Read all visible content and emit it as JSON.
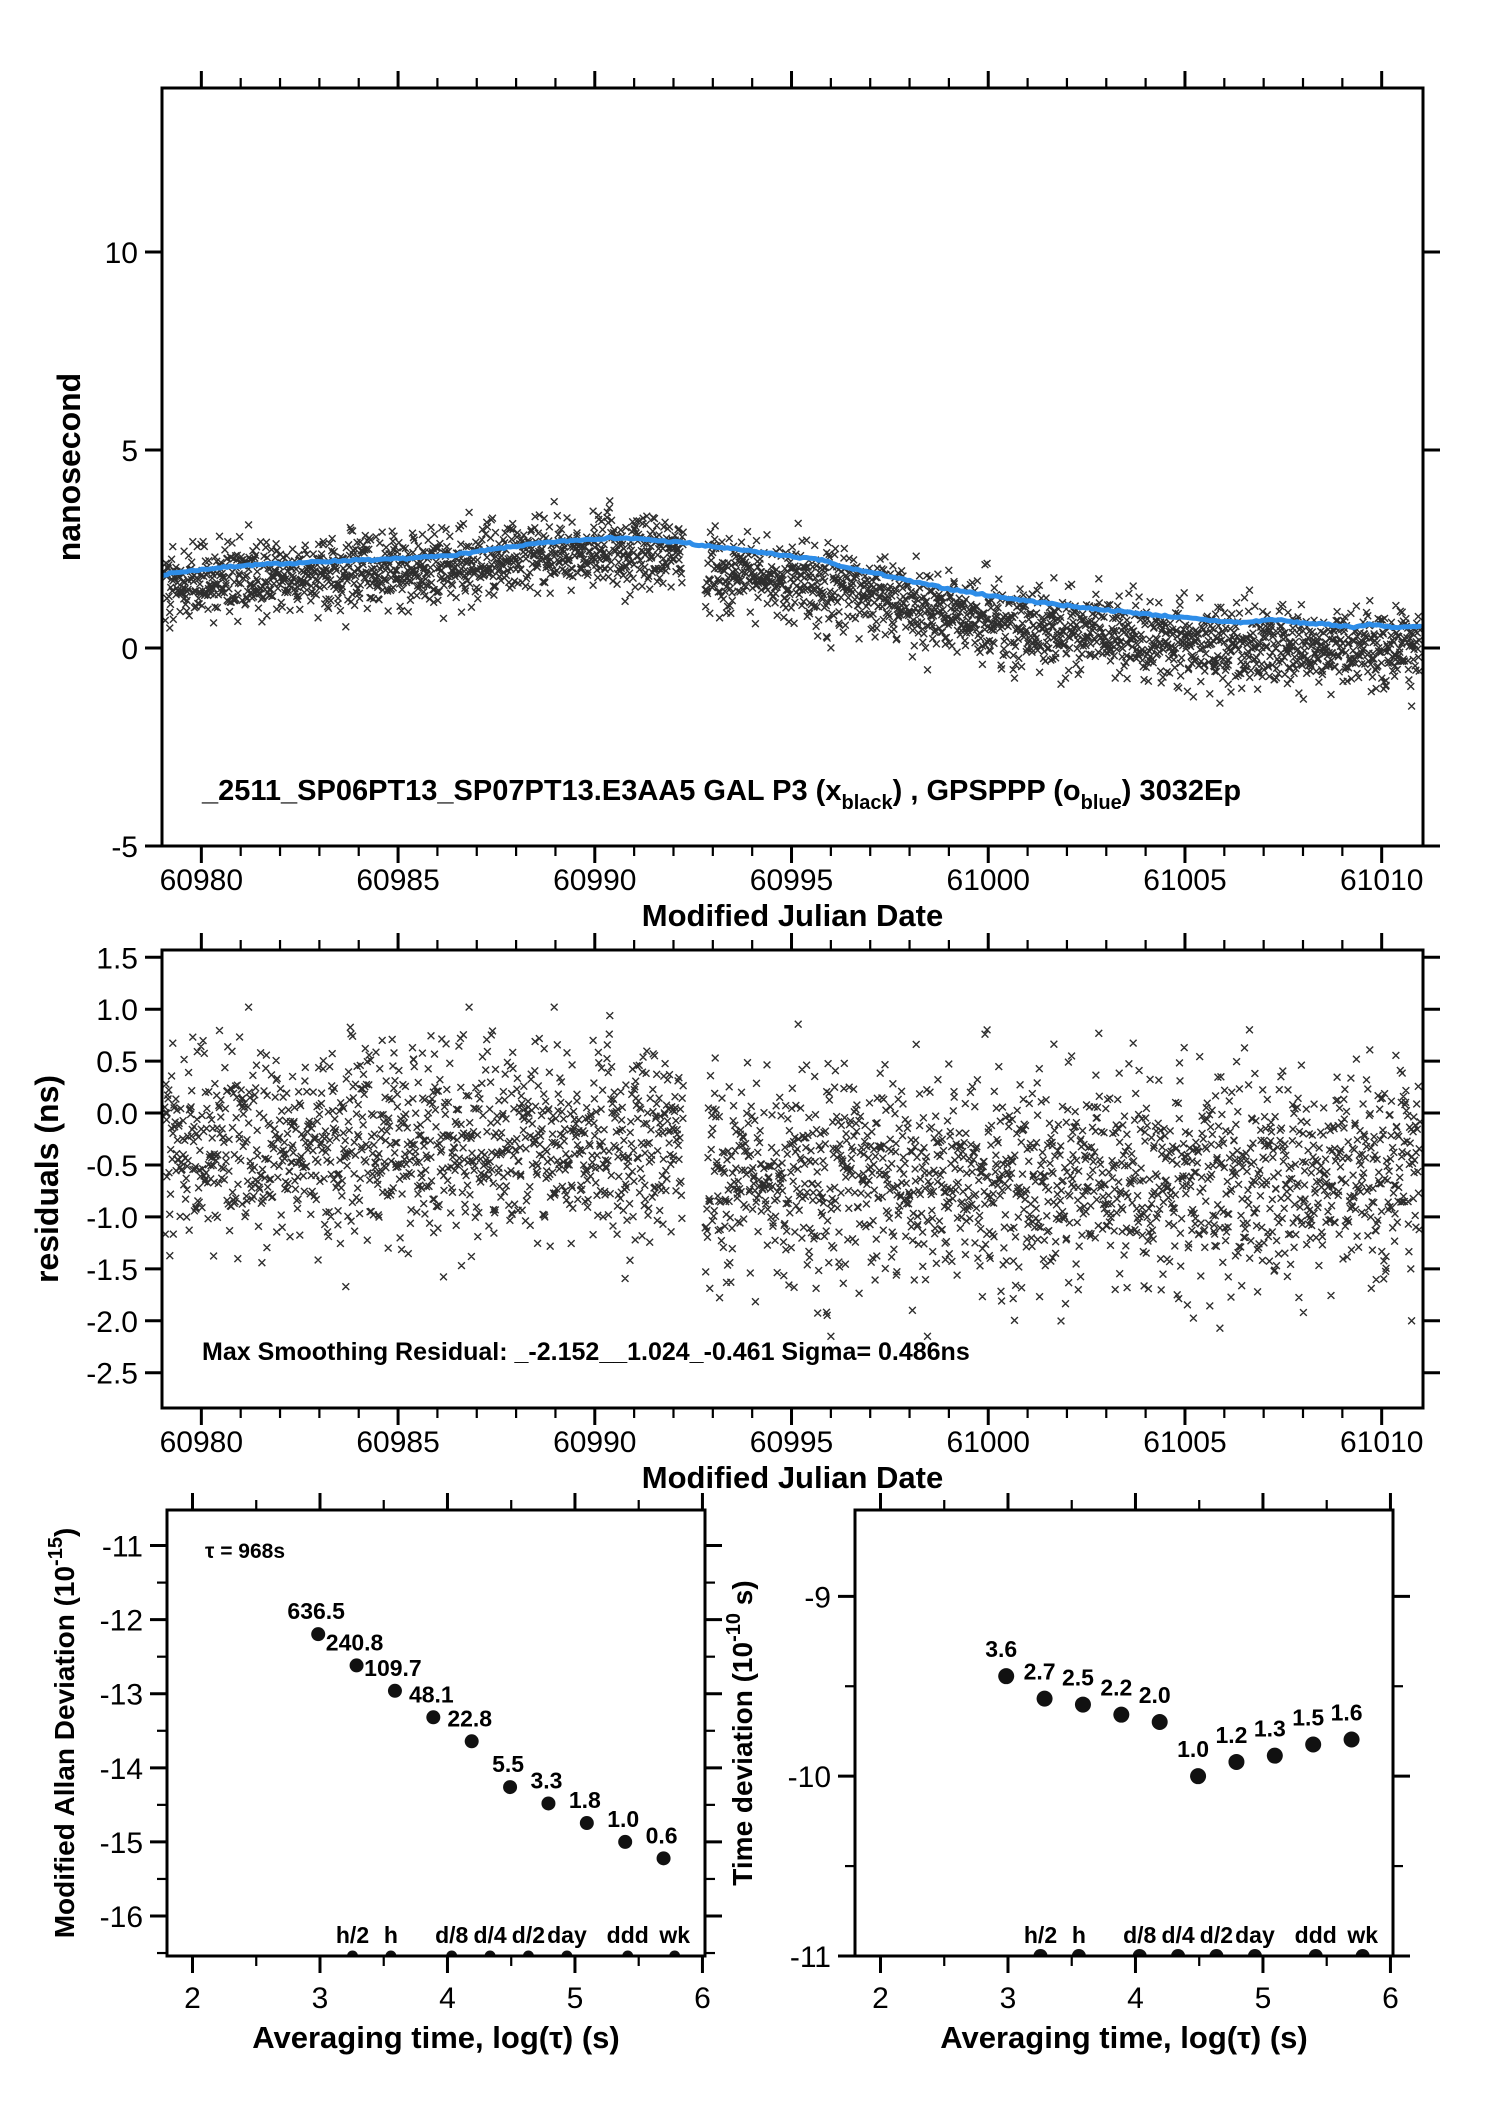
{
  "colors": {
    "background": "#ffffff",
    "scatter_black": "#111111",
    "curve_blue": "#2e8de8",
    "accent_red": "#ee0000",
    "axis": "#000000"
  },
  "chart_data": [
    {
      "id": "top",
      "type": "scatter",
      "xlabel": "Modified Julian Date",
      "ylabel": "nanosecond",
      "xlim": [
        60979,
        61011.05
      ],
      "ylim": [
        -5,
        14.14
      ],
      "xticks": [
        60980,
        60985,
        60990,
        60995,
        61000,
        61005,
        61010
      ],
      "xtick_labels": [
        "60980",
        "60985",
        "60990",
        "60995",
        "61000",
        "61005",
        "61010"
      ],
      "x_minor_step": 1,
      "yticks": [
        -5,
        0,
        5,
        10
      ],
      "ytick_labels": [
        "-5",
        "0",
        "5",
        "10"
      ],
      "annotation_parts": [
        {
          "t": "_2511_SP06PT13_SP07PT13.E3AA5    GAL P3 (x"
        },
        {
          "sub": "black"
        },
        {
          "t": ") ,  GPSPPP (o"
        },
        {
          "sub": "blue"
        },
        {
          "t": ")  3032Ep"
        }
      ],
      "series": [
        {
          "name": "GAL P3",
          "marker": "x",
          "color": "#111111",
          "definition": "smoothed_curve_plus_residuals"
        },
        {
          "name": "GPSPPP",
          "marker": "o",
          "color": "#2e8de8",
          "smoothed_curve_points": [
            [
              60979.0,
              1.85
            ],
            [
              60979.5,
              1.92
            ],
            [
              60980,
              1.98
            ],
            [
              60980.5,
              2.03
            ],
            [
              60981,
              2.08
            ],
            [
              60981.5,
              2.1
            ],
            [
              60982,
              2.13
            ],
            [
              60982.5,
              2.15
            ],
            [
              60983,
              2.18
            ],
            [
              60983.5,
              2.2
            ],
            [
              60984,
              2.22
            ],
            [
              60984.5,
              2.22
            ],
            [
              60985,
              2.25
            ],
            [
              60985.5,
              2.28
            ],
            [
              60986,
              2.31
            ],
            [
              60986.5,
              2.36
            ],
            [
              60987,
              2.43
            ],
            [
              60987.5,
              2.5
            ],
            [
              60988,
              2.57
            ],
            [
              60988.5,
              2.63
            ],
            [
              60989,
              2.68
            ],
            [
              60989.5,
              2.72
            ],
            [
              60990,
              2.76
            ],
            [
              60990.5,
              2.78
            ],
            [
              60991,
              2.76
            ],
            [
              60991.5,
              2.72
            ],
            [
              60992,
              2.68
            ],
            [
              60992.4,
              2.65
            ],
            [
              60992.6,
              2.59
            ],
            [
              60993,
              2.56
            ],
            [
              60993.5,
              2.5
            ],
            [
              60994,
              2.44
            ],
            [
              60994.5,
              2.38
            ],
            [
              60995,
              2.31
            ],
            [
              60995.5,
              2.25
            ],
            [
              60995.9,
              2.2
            ],
            [
              60996.2,
              2.06
            ],
            [
              60996.6,
              1.99
            ],
            [
              60997,
              1.91
            ],
            [
              60997.5,
              1.81
            ],
            [
              60998,
              1.69
            ],
            [
              60998.5,
              1.59
            ],
            [
              60999,
              1.49
            ],
            [
              60999.5,
              1.41
            ],
            [
              61000,
              1.33
            ],
            [
              61000.5,
              1.26
            ],
            [
              61001,
              1.19
            ],
            [
              61001.5,
              1.13
            ],
            [
              61002,
              1.07
            ],
            [
              61002.5,
              1.01
            ],
            [
              61003,
              0.96
            ],
            [
              61003.5,
              0.91
            ],
            [
              61004,
              0.86
            ],
            [
              61004.5,
              0.81
            ],
            [
              61005,
              0.76
            ],
            [
              61005.5,
              0.71
            ],
            [
              61006,
              0.67
            ],
            [
              61006.5,
              0.64
            ],
            [
              61007,
              0.7
            ],
            [
              61007.3,
              0.72
            ],
            [
              61007.7,
              0.66
            ],
            [
              61008,
              0.63
            ],
            [
              61008.5,
              0.6
            ],
            [
              61009,
              0.56
            ],
            [
              61009.3,
              0.53
            ],
            [
              61009.7,
              0.59
            ],
            [
              61010,
              0.57
            ],
            [
              61010.4,
              0.51
            ],
            [
              61010.7,
              0.53
            ],
            [
              61011,
              0.54
            ]
          ]
        }
      ],
      "residual_model": {
        "seed": 42,
        "n": 2880,
        "x_start": 60979.07,
        "x_end": 61010.97,
        "split": 60992.5,
        "mean_before": -0.3,
        "mean_after": -0.62,
        "sigma_before": 0.47,
        "sigma_after": 0.5,
        "clip": [
          -2.15,
          1.02
        ],
        "gaps": [
          [
            60992.25,
            60992.8
          ]
        ]
      }
    },
    {
      "id": "residuals",
      "type": "scatter",
      "xlabel": "Modified Julian Date",
      "ylabel": "residuals (ns)",
      "xlim": [
        60979,
        61011.05
      ],
      "ylim": [
        -2.84,
        1.57
      ],
      "xticks": [
        60980,
        60985,
        60990,
        60995,
        61000,
        61005,
        61010
      ],
      "xtick_labels": [
        "60980",
        "60985",
        "60990",
        "60995",
        "61000",
        "61005",
        "61010"
      ],
      "x_minor_step": 1,
      "yticks": [
        1.5,
        1.0,
        0.5,
        0.0,
        -0.5,
        -1.0,
        -1.5,
        -2.0,
        -2.5
      ],
      "ytick_labels": [
        "1.5",
        "1.0",
        "0.5",
        "0.0",
        "-0.5",
        "-1.0",
        "-1.5",
        "-2.0",
        "-2.5"
      ],
      "annotation": "Max Smoothing Residual: _-2.152__1.024_-0.461  Sigma= 0.486ns",
      "stats": {
        "residual_min": -2.152,
        "residual_max": 1.024,
        "residual_mean": -0.461,
        "sigma_ns": 0.486
      },
      "uses_residuals_of": "top"
    },
    {
      "id": "mdev",
      "type": "scatter",
      "xlabel": "Averaging time, log(τ) (s)",
      "ylabel_parts": [
        {
          "t": "Modified Allan Deviation (10"
        },
        {
          "sup": "-15"
        },
        {
          "t": ")"
        }
      ],
      "xlim": [
        1.8,
        6.02
      ],
      "ylim": [
        -16.54,
        -10.52
      ],
      "xticks": [
        2,
        3,
        4,
        5,
        6
      ],
      "xtick_labels": [
        "2",
        "3",
        "4",
        "5",
        "6"
      ],
      "x_minor_step": 0.5,
      "yticks": [
        -11,
        -12,
        -13,
        -14,
        -15,
        -16
      ],
      "ytick_labels": [
        "-11",
        "-12",
        "-13",
        "-14",
        "-15",
        "-16"
      ],
      "y_minor_step": 0.5,
      "annotation": "τ = 968s",
      "points": [
        {
          "x": 2.986,
          "y": -12.196,
          "label": "636.5"
        },
        {
          "x": 3.287,
          "y": -12.618,
          "label": "240.8"
        },
        {
          "x": 3.588,
          "y": -12.96,
          "label": "109.7"
        },
        {
          "x": 3.889,
          "y": -13.318,
          "label": "48.1"
        },
        {
          "x": 4.19,
          "y": -13.642,
          "label": "22.8"
        },
        {
          "x": 4.491,
          "y": -14.26,
          "label": "5.5"
        },
        {
          "x": 4.792,
          "y": -14.481,
          "label": "3.3"
        },
        {
          "x": 5.093,
          "y": -14.745,
          "label": "1.8"
        },
        {
          "x": 5.394,
          "y": -15.0,
          "label": "1.0"
        },
        {
          "x": 5.695,
          "y": -15.222,
          "label": "0.6"
        }
      ],
      "tau_markers": [
        {
          "x": 3.255,
          "label": "h/2"
        },
        {
          "x": 3.556,
          "label": "h"
        },
        {
          "x": 4.033,
          "label": "d/8"
        },
        {
          "x": 4.334,
          "label": "d/4"
        },
        {
          "x": 4.635,
          "label": "d/2"
        },
        {
          "x": 4.937,
          "label": "day"
        },
        {
          "x": 5.414,
          "label": "ddd"
        },
        {
          "x": 5.782,
          "label": "wk"
        }
      ]
    },
    {
      "id": "tdev",
      "type": "scatter",
      "xlabel": "Averaging time, log(τ) (s)",
      "ylabel_parts": [
        {
          "t": "Time deviation (10"
        },
        {
          "sup": "-10"
        },
        {
          "t": " s)"
        }
      ],
      "xlim": [
        1.8,
        6.02
      ],
      "ylim": [
        -11.0,
        -8.52
      ],
      "xticks": [
        2,
        3,
        4,
        5,
        6
      ],
      "xtick_labels": [
        "2",
        "3",
        "4",
        "5",
        "6"
      ],
      "x_minor_step": 0.5,
      "yticks": [
        -9,
        -10,
        -11
      ],
      "ytick_labels": [
        "-9",
        "-10",
        "-11"
      ],
      "y_minor_step": 0.5,
      "points": [
        {
          "x": 2.986,
          "y": -9.444,
          "label": "3.6"
        },
        {
          "x": 3.287,
          "y": -9.569,
          "label": "2.7"
        },
        {
          "x": 3.588,
          "y": -9.602,
          "label": "2.5"
        },
        {
          "x": 3.889,
          "y": -9.658,
          "label": "2.2"
        },
        {
          "x": 4.19,
          "y": -9.699,
          "label": "2.0"
        },
        {
          "x": 4.491,
          "y": -10.0,
          "label": "1.0"
        },
        {
          "x": 4.792,
          "y": -9.921,
          "label": "1.2"
        },
        {
          "x": 5.093,
          "y": -9.886,
          "label": "1.3"
        },
        {
          "x": 5.394,
          "y": -9.824,
          "label": "1.5"
        },
        {
          "x": 5.695,
          "y": -9.796,
          "label": "1.6"
        }
      ],
      "tau_markers": [
        {
          "x": 3.255,
          "label": "h/2"
        },
        {
          "x": 3.556,
          "label": "h"
        },
        {
          "x": 4.033,
          "label": "d/8"
        },
        {
          "x": 4.334,
          "label": "d/4"
        },
        {
          "x": 4.635,
          "label": "d/2"
        },
        {
          "x": 4.937,
          "label": "day"
        },
        {
          "x": 5.414,
          "label": "ddd"
        },
        {
          "x": 5.782,
          "label": "wk"
        }
      ]
    }
  ]
}
